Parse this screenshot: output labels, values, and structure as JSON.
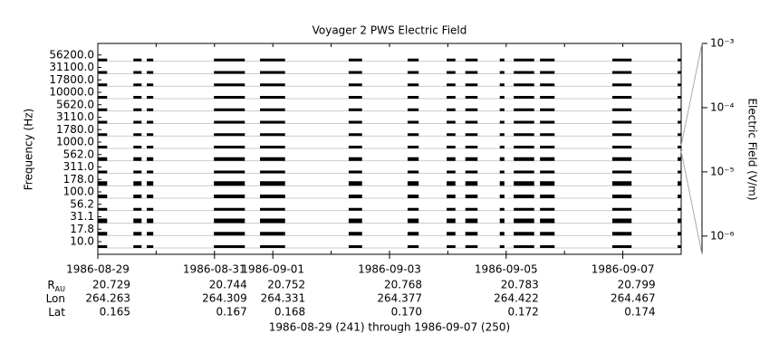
{
  "chart_data": {
    "type": "channel-strip",
    "title": "Voyager 2 PWS Electric Field",
    "ylabel": "Frequency (Hz)",
    "y2label": "Electric Field (V/m)",
    "footer": "1986-08-29 (241) through 1986-09-07 (250)",
    "categories": [
      "10.0",
      "17.8",
      "31.1",
      "56.2",
      "100.0",
      "178.0",
      "311.0",
      "562.0",
      "1000.0",
      "1780.0",
      "3110.0",
      "5620.0",
      "10000.0",
      "17800.0",
      "31100.0",
      "56200.0"
    ],
    "xlim": [
      241,
      251
    ],
    "xticks": [
      {
        "value": 241,
        "label": "1986-08-29"
      },
      {
        "value": 243,
        "label": "1986-08-31"
      },
      {
        "value": 244,
        "label": "1986-09-01"
      },
      {
        "value": 246,
        "label": "1986-09-03"
      },
      {
        "value": 248,
        "label": "1986-09-05"
      },
      {
        "value": 250,
        "label": "1986-09-07"
      }
    ],
    "segments": [
      [
        241.0,
        241.16
      ],
      [
        241.61,
        241.75
      ],
      [
        241.84,
        241.95
      ],
      [
        242.99,
        243.52
      ],
      [
        243.78,
        244.21
      ],
      [
        245.3,
        245.53
      ],
      [
        246.31,
        246.5
      ],
      [
        246.98,
        247.13
      ],
      [
        247.3,
        247.51
      ],
      [
        247.89,
        247.97
      ],
      [
        248.13,
        248.48
      ],
      [
        248.58,
        248.83
      ],
      [
        249.82,
        250.15
      ],
      [
        250.94,
        251.0
      ]
    ],
    "y2lim": [
      5.2e-07,
      0.001
    ],
    "y2log": true,
    "y2ticks": [
      {
        "value": 0.001,
        "label": "10⁻³"
      },
      {
        "value": 0.0001,
        "label": "10⁻⁴"
      },
      {
        "value": 1e-05,
        "label": "10⁻⁵"
      },
      {
        "value": 1e-06,
        "label": "10⁻⁶"
      }
    ],
    "color": "#000000",
    "ephemeris": [
      {
        "label": "R",
        "label_sub": "AU",
        "values": [
          "20.729",
          "20.744",
          "20.752",
          "20.768",
          "20.783",
          "20.799"
        ]
      },
      {
        "label": "Lon",
        "values": [
          "264.263",
          "264.309",
          "264.331",
          "264.377",
          "264.422",
          "264.467"
        ]
      },
      {
        "label": "Lat",
        "values": [
          "0.165",
          "0.167",
          "0.168",
          "0.170",
          "0.172",
          "0.174"
        ]
      }
    ]
  }
}
